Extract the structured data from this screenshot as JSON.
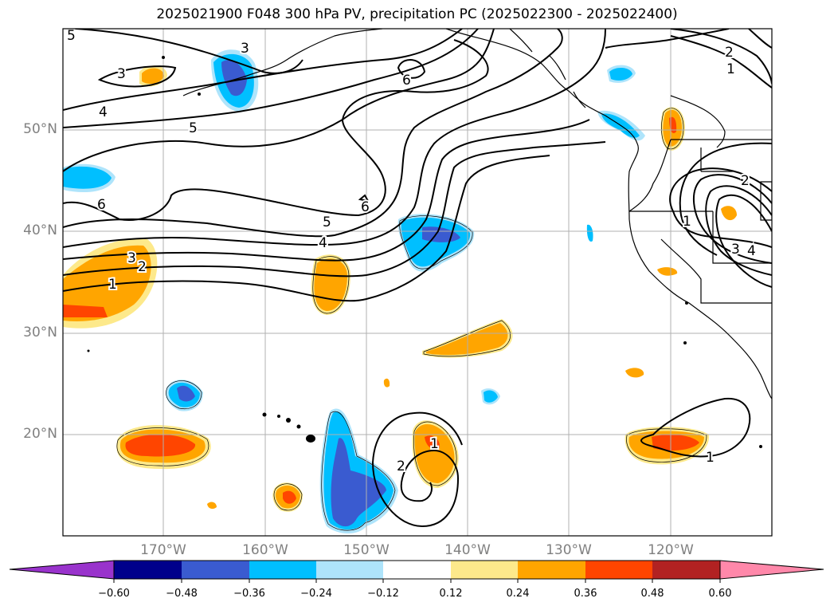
{
  "title": "2025021900 F048 300 hPa PV, precipitation PC (2025022300 - 2025022400)",
  "lat_labels": [
    "50°N",
    "40°N",
    "30°N",
    "20°N"
  ],
  "lon_labels": [
    "170°W",
    "160°W",
    "150°W",
    "140°W",
    "130°W",
    "120°W"
  ],
  "colorbar": {
    "ticks": [
      "−0.60",
      "−0.48",
      "−0.36",
      "−0.24",
      "−0.12",
      "0.12",
      "0.24",
      "0.36",
      "0.48",
      "0.60"
    ],
    "colors": [
      "#9933cc",
      "#00008b",
      "#3a5bd0",
      "#00bfff",
      "#aee4fb",
      "#ffffff",
      "#fde98b",
      "#ffa500",
      "#ff4500",
      "#b22222",
      "#ff88aa"
    ]
  },
  "contour_labels": {
    "c5_top": "5",
    "c3_nw": "3",
    "c3_n": "3",
    "c4_w": "4",
    "c5_w": "5",
    "c6_n": "6",
    "c6_w": "6",
    "c6_mid": "6",
    "c5_mid": "5",
    "c4_mid": "4",
    "c3_w": "3",
    "c2_w": "2",
    "c1_w": "1",
    "c2_ne": "2",
    "c1_ne": "1",
    "c1_e": "1",
    "c2_e": "2",
    "c3_e": "3",
    "c4_e": "4",
    "c1_s": "1",
    "c2_s": "2",
    "c1_se": "1"
  },
  "colors": {
    "contour": "#000000",
    "grid": "#b0b0b0",
    "coast": "#000000",
    "axis_label": "#808080"
  }
}
